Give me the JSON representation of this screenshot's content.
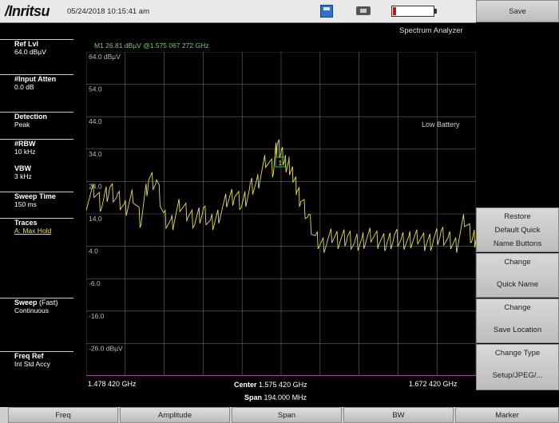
{
  "header": {
    "logo": "/Inritsu",
    "datetime": "05/24/2018 10:15:41 am",
    "mode": "Spectrum Analyzer"
  },
  "params": [
    {
      "label": "Ref Lvl",
      "value": "64.0 dBµV"
    },
    {
      "label": "#Input Atten",
      "value": "0.0 dB"
    },
    {
      "label": "Detection",
      "value": "Peak"
    },
    {
      "label": "#RBW",
      "value": "10 kHz"
    },
    {
      "label": "VBW",
      "value": "3 kHz"
    },
    {
      "label": "Sweep Time",
      "value": "150 ms"
    },
    {
      "label": "Traces",
      "value": "A: Max Hold"
    },
    {
      "label": "Sweep",
      "label_extra": "(Fast)",
      "value": "Continuous"
    },
    {
      "label": "Freq Ref",
      "value": "Int Std Accy"
    }
  ],
  "marker": {
    "readout": "M1 26.81 dBµV @1.575 067 272 GHz",
    "flag": "1"
  },
  "status": {
    "low_battery": "Low Battery"
  },
  "right_buttons": {
    "save": "Save",
    "softkeys": [
      {
        "line1": "Restore",
        "line2": "Default Quick",
        "line3": "Name Buttons"
      },
      {
        "line1": "Change",
        "line2": "",
        "line3": "Quick Name"
      },
      {
        "line1": "Change",
        "line2": "",
        "line3": "Save Location"
      },
      {
        "line1": "Change Type",
        "line2": "",
        "line3": "Setup/JPEG/..."
      }
    ]
  },
  "tabs": [
    "Freq",
    "Amplitude",
    "Span",
    "BW",
    "Marker"
  ],
  "axis": {
    "start": "1.478 420 GHz",
    "stop": "1.672 420 GHz",
    "center_label": "Center",
    "center_value": "1.575 420 GHz",
    "span_label": "Span",
    "span_value": "194.000 MHz"
  },
  "colors": {
    "trace": "#e8e040",
    "marker": "#3cbf3c",
    "grid": "#6a6a6a",
    "background": "#000000"
  },
  "chart_data": {
    "type": "line",
    "title": "",
    "xlabel": "",
    "ylabel": "",
    "x_unit": "GHz",
    "y_unit": "dBµV",
    "xlim": [
      1.47842,
      1.67242
    ],
    "ylim": [
      -36.0,
      64.0
    ],
    "y_tick_labels": [
      "64.0 dBµV",
      "54.0",
      "44.0",
      "34.0",
      "24.0",
      "14.0",
      "4.0",
      "-6.0",
      "-16.0",
      "-26.0 dBµV"
    ],
    "grid": true,
    "series": [
      {
        "values_x": [
          1.4784,
          1.4823,
          1.4862,
          1.4901,
          1.494,
          1.4979,
          1.5017,
          1.5056,
          1.5095,
          1.5134,
          1.5173,
          1.5211,
          1.525,
          1.5289,
          1.5328,
          1.5367,
          1.5406,
          1.5444,
          1.5483,
          1.5522,
          1.5561,
          1.56,
          1.5638,
          1.5677,
          1.5716,
          1.5735,
          1.5755,
          1.5774,
          1.5794,
          1.5813,
          1.5832,
          1.5852,
          1.5891,
          1.593,
          1.5968,
          1.6007,
          1.6046,
          1.6085,
          1.6124,
          1.6162,
          1.6201,
          1.624,
          1.6279,
          1.6318,
          1.6357,
          1.6395,
          1.6434,
          1.6473,
          1.6512,
          1.6551,
          1.659,
          1.6628,
          1.6667,
          1.6706,
          1.6724
        ],
        "values_y": [
          18,
          21,
          17,
          22,
          19,
          16,
          20,
          12,
          25,
          24,
          13,
          11,
          17,
          14,
          12,
          15,
          11,
          14,
          18,
          20,
          17,
          22,
          24,
          31,
          28,
          36,
          33,
          30,
          29,
          26,
          22,
          18,
          13,
          6,
          5,
          7,
          6,
          7,
          5,
          6,
          8,
          6,
          5,
          7,
          6,
          6,
          7,
          5,
          6,
          8,
          6,
          5,
          12,
          7,
          6
        ]
      }
    ]
  }
}
